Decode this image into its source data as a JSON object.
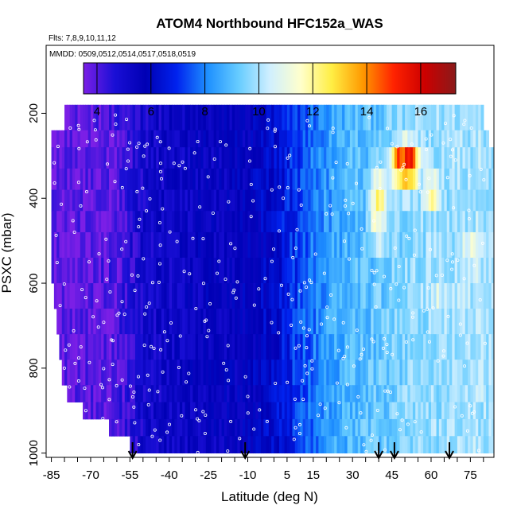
{
  "chart_data": {
    "type": "heatmap",
    "title": "ATOM4 Northbound HFC152a_WAS",
    "flights_label": "Flts: 7,8,9,10,11,12",
    "dates_label": "MMDD: 0509,0512,0514,0517,0518,0519",
    "xlabel": "Latitude (deg N)",
    "ylabel": "PSXC (mbar)",
    "xlim": [
      -87,
      84
    ],
    "ylim": [
      1010,
      40
    ],
    "x_ticks": [
      -85,
      -80,
      -75,
      -70,
      -65,
      -60,
      -55,
      -50,
      -45,
      -40,
      -35,
      -30,
      -25,
      -20,
      -15,
      -10,
      -5,
      0,
      5,
      10,
      15,
      20,
      25,
      30,
      35,
      40,
      45,
      50,
      55,
      60,
      65,
      70,
      75,
      80
    ],
    "x_tick_labels": [
      "-85",
      "-70",
      "-55",
      "-40",
      "-25",
      "-10",
      "5",
      "15",
      "30",
      "45",
      "60",
      "75"
    ],
    "x_tick_label_values": [
      -85,
      -70,
      -55,
      -40,
      -25,
      -10,
      5,
      15,
      30,
      45,
      60,
      75
    ],
    "y_ticks": [
      200,
      400,
      600,
      800,
      1000
    ],
    "y_tick_labels": [
      "200",
      "400",
      "600",
      "800",
      "1000"
    ],
    "colorbar": {
      "range": [
        3.5,
        17.3
      ],
      "ticks": [
        4,
        6,
        8,
        10,
        12,
        14,
        16
      ],
      "tick_labels": [
        "4",
        "6",
        "8",
        "10",
        "12",
        "14",
        "16"
      ],
      "colors": [
        "#7b1fe6",
        "#1a0fd6",
        "#0000b4",
        "#0022ee",
        "#1e90ff",
        "#66ccff",
        "#cfefff",
        "#ffffcc",
        "#ffee44",
        "#ff9900",
        "#ff2200",
        "#cc0000",
        "#8a1a1a"
      ]
    },
    "bands": [
      {
        "p_top": 180,
        "p_bot": 240,
        "lat_min": -80,
        "lat_max": 80
      },
      {
        "p_top": 240,
        "p_bot": 280,
        "lat_min": -85,
        "lat_max": 82
      },
      {
        "p_top": 280,
        "p_bot": 330,
        "lat_min": -85,
        "lat_max": 84
      },
      {
        "p_top": 330,
        "p_bot": 380,
        "lat_min": -85,
        "lat_max": 84
      },
      {
        "p_top": 380,
        "p_bot": 430,
        "lat_min": -85,
        "lat_max": 84
      },
      {
        "p_top": 430,
        "p_bot": 480,
        "lat_min": -85,
        "lat_max": 84
      },
      {
        "p_top": 480,
        "p_bot": 540,
        "lat_min": -85,
        "lat_max": 84
      },
      {
        "p_top": 540,
        "p_bot": 600,
        "lat_min": -85,
        "lat_max": 84
      },
      {
        "p_top": 600,
        "p_bot": 660,
        "lat_min": -84,
        "lat_max": 84
      },
      {
        "p_top": 660,
        "p_bot": 720,
        "lat_min": -83,
        "lat_max": 84
      },
      {
        "p_top": 720,
        "p_bot": 780,
        "lat_min": -82,
        "lat_max": 84
      },
      {
        "p_top": 780,
        "p_bot": 840,
        "lat_min": -81,
        "lat_max": 84
      },
      {
        "p_top": 840,
        "p_bot": 880,
        "lat_min": -79,
        "lat_max": 84
      },
      {
        "p_top": 880,
        "p_bot": 920,
        "lat_min": -73,
        "lat_max": 84
      },
      {
        "p_top": 920,
        "p_bot": 960,
        "lat_min": -63,
        "lat_max": 84
      },
      {
        "p_top": 960,
        "p_bot": 1000,
        "lat_min": -55,
        "lat_max": 84
      }
    ],
    "concentration_profile": {
      "lat": [
        -85,
        -70,
        -60,
        -50,
        -40,
        -30,
        -20,
        -10,
        0,
        10,
        20,
        30,
        40,
        50,
        60,
        70,
        84
      ],
      "value": [
        3.7,
        3.8,
        4.0,
        5.0,
        5.2,
        5.4,
        5.5,
        5.7,
        6.2,
        7.3,
        8.3,
        8.9,
        9.2,
        9.6,
        9.8,
        9.9,
        10.0
      ]
    },
    "hotspots": [
      {
        "lat": 52,
        "p": 320,
        "value": 16.5
      },
      {
        "lat": 48,
        "p": 320,
        "value": 15.5
      },
      {
        "lat": 40,
        "p": 390,
        "value": 12.5
      },
      {
        "lat": 40,
        "p": 470,
        "value": 12.0
      },
      {
        "lat": 60,
        "p": 390,
        "value": 11.8
      },
      {
        "lat": 75,
        "p": 530,
        "value": 11.5
      },
      {
        "lat": 63,
        "p": 620,
        "value": 10.8
      }
    ],
    "sample_arrows_lat": [
      -54,
      -11,
      40,
      46,
      67
    ]
  }
}
